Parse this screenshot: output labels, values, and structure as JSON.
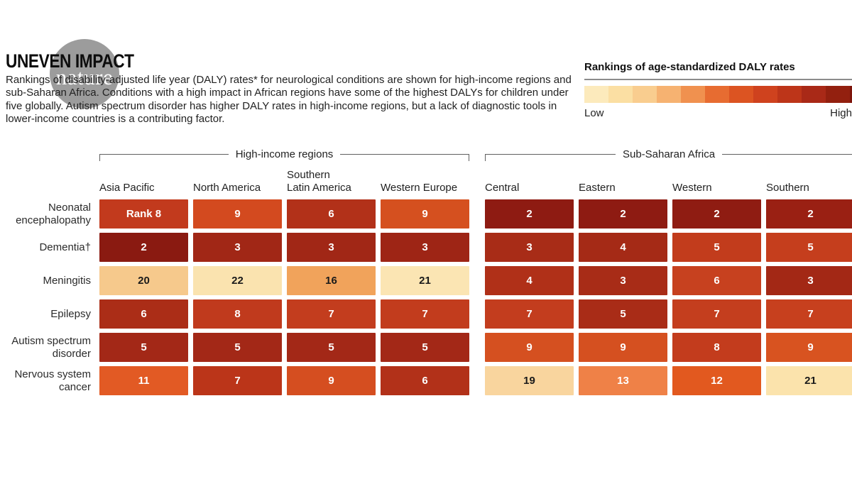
{
  "watermark": {
    "label": "nature"
  },
  "header": {
    "title": "UNEVEN IMPACT",
    "description": "Rankings of disability-adjusted life year (DALY) rates* for neurological conditions are shown for high-income regions and sub-Saharan Africa. Conditions with a high impact in African regions have some of the highest DALYs for children under five globally. Autism spectrum disorder has higher DALY rates in high-income regions, but a lack of diagnostic tools in lower-income countries is a contributing factor."
  },
  "legend": {
    "title": "Rankings of age-standardized DALY rates",
    "low_label": "Low",
    "high_label": "High",
    "swatches": [
      "#fceabc",
      "#fbdfa3",
      "#f9cd8f",
      "#f6b271",
      "#f0914f",
      "#e76c31",
      "#dc5422",
      "#cf421e",
      "#bd3519",
      "#a92917",
      "#93200f",
      "#7e150c"
    ]
  },
  "chart_data": {
    "type": "heatmap",
    "title": "UNEVEN IMPACT",
    "legend_scale": {
      "low": "Low",
      "high": "High",
      "label": "Rankings of age-standardized DALY rates"
    },
    "groups": [
      {
        "label": "High-income regions",
        "columns": [
          {
            "lines": [
              "Asia Pacific"
            ]
          },
          {
            "lines": [
              "North America"
            ]
          },
          {
            "lines": [
              "Southern",
              "Latin America"
            ]
          },
          {
            "lines": [
              "Western Europe"
            ]
          }
        ]
      },
      {
        "label": "Sub-Saharan Africa",
        "columns": [
          {
            "lines": [
              "Central"
            ]
          },
          {
            "lines": [
              "Eastern"
            ]
          },
          {
            "lines": [
              "Western"
            ]
          },
          {
            "lines": [
              "Southern"
            ]
          }
        ]
      }
    ],
    "rows": [
      {
        "condition": "Neonatal encephalopathy",
        "label_lines": [
          "Neonatal",
          "encephalopathy"
        ],
        "high_income": [
          {
            "label": "Rank 8",
            "value": 8,
            "color": "#c23a1d",
            "text_color": "#ffffff"
          },
          {
            "label": "9",
            "value": 9,
            "color": "#d34a1f",
            "text_color": "#ffffff"
          },
          {
            "label": "6",
            "value": 6,
            "color": "#b23119",
            "text_color": "#ffffff"
          },
          {
            "label": "9",
            "value": 9,
            "color": "#d5501f",
            "text_color": "#ffffff"
          }
        ],
        "sub_saharan_africa": [
          {
            "label": "2",
            "value": 2,
            "color": "#8e1b12",
            "text_color": "#ffffff"
          },
          {
            "label": "2",
            "value": 2,
            "color": "#8e1b12",
            "text_color": "#ffffff"
          },
          {
            "label": "2",
            "value": 2,
            "color": "#8f1c12",
            "text_color": "#ffffff"
          },
          {
            "label": "2",
            "value": 2,
            "color": "#9a2013",
            "text_color": "#ffffff"
          }
        ]
      },
      {
        "condition": "Dementia†",
        "label_lines": [
          "Dementia†"
        ],
        "high_income": [
          {
            "label": "2",
            "value": 2,
            "color": "#8a1a11",
            "text_color": "#ffffff"
          },
          {
            "label": "3",
            "value": 3,
            "color": "#a12716",
            "text_color": "#ffffff"
          },
          {
            "label": "3",
            "value": 3,
            "color": "#a12716",
            "text_color": "#ffffff"
          },
          {
            "label": "3",
            "value": 3,
            "color": "#9e2515",
            "text_color": "#ffffff"
          }
        ],
        "sub_saharan_africa": [
          {
            "label": "3",
            "value": 3,
            "color": "#a82c17",
            "text_color": "#ffffff"
          },
          {
            "label": "4",
            "value": 4,
            "color": "#a52a16",
            "text_color": "#ffffff"
          },
          {
            "label": "5",
            "value": 5,
            "color": "#c23c1c",
            "text_color": "#ffffff"
          },
          {
            "label": "5",
            "value": 5,
            "color": "#c53e1d",
            "text_color": "#ffffff"
          }
        ]
      },
      {
        "condition": "Meningitis",
        "label_lines": [
          "Meningitis"
        ],
        "high_income": [
          {
            "label": "20",
            "value": 20,
            "color": "#f6c98c",
            "text_color": "#1a1a1a"
          },
          {
            "label": "22",
            "value": 22,
            "color": "#fae3af",
            "text_color": "#1a1a1a"
          },
          {
            "label": "16",
            "value": 16,
            "color": "#f1a35b",
            "text_color": "#1a1a1a"
          },
          {
            "label": "21",
            "value": 21,
            "color": "#fbe5b3",
            "text_color": "#1a1a1a"
          }
        ],
        "sub_saharan_africa": [
          {
            "label": "4",
            "value": 4,
            "color": "#b03018",
            "text_color": "#ffffff"
          },
          {
            "label": "3",
            "value": 3,
            "color": "#a82c17",
            "text_color": "#ffffff"
          },
          {
            "label": "6",
            "value": 6,
            "color": "#c7411f",
            "text_color": "#ffffff"
          },
          {
            "label": "3",
            "value": 3,
            "color": "#a32815",
            "text_color": "#ffffff"
          }
        ]
      },
      {
        "condition": "Epilepsy",
        "label_lines": [
          "Epilepsy"
        ],
        "high_income": [
          {
            "label": "6",
            "value": 6,
            "color": "#ab2d17",
            "text_color": "#ffffff"
          },
          {
            "label": "8",
            "value": 8,
            "color": "#c03a1d",
            "text_color": "#ffffff"
          },
          {
            "label": "7",
            "value": 7,
            "color": "#c33d1e",
            "text_color": "#ffffff"
          },
          {
            "label": "7",
            "value": 7,
            "color": "#c23c1d",
            "text_color": "#ffffff"
          }
        ],
        "sub_saharan_africa": [
          {
            "label": "7",
            "value": 7,
            "color": "#c33d1e",
            "text_color": "#ffffff"
          },
          {
            "label": "5",
            "value": 5,
            "color": "#a92c17",
            "text_color": "#ffffff"
          },
          {
            "label": "7",
            "value": 7,
            "color": "#c43e1e",
            "text_color": "#ffffff"
          },
          {
            "label": "7",
            "value": 7,
            "color": "#c7401e",
            "text_color": "#ffffff"
          }
        ]
      },
      {
        "condition": "Autism spectrum disorder",
        "label_lines": [
          "Autism spectrum",
          "disorder"
        ],
        "high_income": [
          {
            "label": "5",
            "value": 5,
            "color": "#a32817",
            "text_color": "#ffffff"
          },
          {
            "label": "5",
            "value": 5,
            "color": "#a32817",
            "text_color": "#ffffff"
          },
          {
            "label": "5",
            "value": 5,
            "color": "#a32817",
            "text_color": "#ffffff"
          },
          {
            "label": "5",
            "value": 5,
            "color": "#a32817",
            "text_color": "#ffffff"
          }
        ],
        "sub_saharan_africa": [
          {
            "label": "9",
            "value": 9,
            "color": "#d55020",
            "text_color": "#ffffff"
          },
          {
            "label": "9",
            "value": 9,
            "color": "#d55020",
            "text_color": "#ffffff"
          },
          {
            "label": "8",
            "value": 8,
            "color": "#c33c1d",
            "text_color": "#ffffff"
          },
          {
            "label": "9",
            "value": 9,
            "color": "#d85320",
            "text_color": "#ffffff"
          }
        ]
      },
      {
        "condition": "Nervous system cancer",
        "label_lines": [
          "Nervous system",
          "cancer"
        ],
        "high_income": [
          {
            "label": "11",
            "value": 11,
            "color": "#e25a24",
            "text_color": "#ffffff"
          },
          {
            "label": "7",
            "value": 7,
            "color": "#bb3519",
            "text_color": "#ffffff"
          },
          {
            "label": "9",
            "value": 9,
            "color": "#d54e20",
            "text_color": "#ffffff"
          },
          {
            "label": "6",
            "value": 6,
            "color": "#b23119",
            "text_color": "#ffffff"
          }
        ],
        "sub_saharan_africa": [
          {
            "label": "19",
            "value": 19,
            "color": "#f9d59e",
            "text_color": "#1a1a1a"
          },
          {
            "label": "13",
            "value": 13,
            "color": "#ef8147",
            "text_color": "#ffffff"
          },
          {
            "label": "12",
            "value": 12,
            "color": "#e2591f",
            "text_color": "#ffffff"
          },
          {
            "label": "21",
            "value": 21,
            "color": "#fbe3ac",
            "text_color": "#1a1a1a"
          }
        ]
      }
    ]
  }
}
